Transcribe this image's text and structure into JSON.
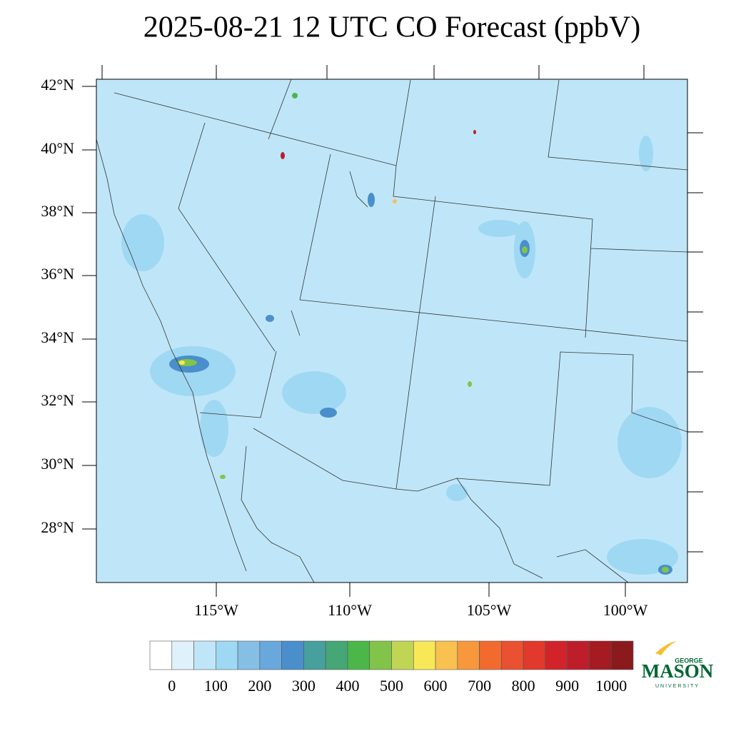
{
  "title": "2025-08-21 12 UTC CO Forecast (ppbV)",
  "lat_labels": [
    "42°N",
    "40°N",
    "38°N",
    "36°N",
    "34°N",
    "32°N",
    "30°N",
    "28°N"
  ],
  "lon_labels": [
    "115°W",
    "110°W",
    "105°W",
    "100°W"
  ],
  "colorbar": {
    "colors": [
      "#ffffff",
      "#dff1fb",
      "#bfe6f8",
      "#9fd8f2",
      "#85bfe5",
      "#68a8dc",
      "#4a8fcb",
      "#479f9e",
      "#45a776",
      "#4ab748",
      "#82c44a",
      "#c1d555",
      "#f8e858",
      "#f8c150",
      "#f7983c",
      "#f26a2e",
      "#e95131",
      "#e1392b",
      "#d2232a",
      "#be1d2a",
      "#a51b22",
      "#8a1a1c"
    ],
    "ticks": [
      0,
      100,
      200,
      300,
      400,
      500,
      600,
      700,
      800,
      900,
      1000
    ]
  },
  "logo": {
    "top": "GEORGE",
    "main": "MASON",
    "bottom": "UNIVERSITY"
  }
}
